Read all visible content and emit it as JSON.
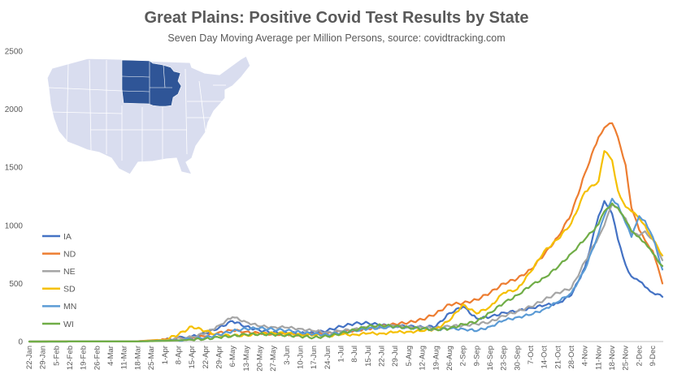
{
  "chart_data": {
    "type": "line",
    "title": "Great Plains: Positive Covid Test Results by State",
    "subtitle": "Seven Day Moving  Average per Million Persons, source: covidtracking.com",
    "xlabel": "",
    "ylabel": "",
    "ylim": [
      0,
      2500
    ],
    "yticks": [
      0,
      500,
      1000,
      1500,
      2000,
      2500
    ],
    "grid": false,
    "legend_position": "left",
    "x_tick_labels": [
      "22-Jan",
      "29-Jan",
      "5-Feb",
      "12-Feb",
      "19-Feb",
      "26-Feb",
      "4-Mar",
      "11-Mar",
      "18-Mar",
      "25-Mar",
      "1-Apr",
      "8-Apr",
      "15-Apr",
      "22-Apr",
      "29-Apr",
      "6-May",
      "13-May",
      "20-May",
      "27-May",
      "3-Jun",
      "10-Jun",
      "17-Jun",
      "24-Jun",
      "1-Jul",
      "8-Jul",
      "15-Jul",
      "22-Jul",
      "29-Jul",
      "5-Aug",
      "12-Aug",
      "19-Aug",
      "26-Aug",
      "2-Sep",
      "9-Sep",
      "16-Sep",
      "23-Sep",
      "30-Sep",
      "7-Oct",
      "14-Oct",
      "21-Oct",
      "28-Oct",
      "4-Nov",
      "11-Nov",
      "18-Nov",
      "25-Nov",
      "2-Dec",
      "9-Dec"
    ],
    "x_end": "14-Dec",
    "series": [
      {
        "name": "IA",
        "color": "#4472c4",
        "points": [
          [
            "22-Jan",
            0
          ],
          [
            "18-Mar",
            2
          ],
          [
            "1-Apr",
            15
          ],
          [
            "15-Apr",
            45
          ],
          [
            "22-Apr",
            70
          ],
          [
            "29-Apr",
            120
          ],
          [
            "6-May",
            175
          ],
          [
            "13-May",
            130
          ],
          [
            "20-May",
            95
          ],
          [
            "27-May",
            80
          ],
          [
            "3-Jun",
            75
          ],
          [
            "10-Jun",
            70
          ],
          [
            "17-Jun",
            72
          ],
          [
            "24-Jun",
            95
          ],
          [
            "1-Jul",
            130
          ],
          [
            "8-Jul",
            155
          ],
          [
            "15-Jul",
            160
          ],
          [
            "22-Jul",
            140
          ],
          [
            "29-Jul",
            135
          ],
          [
            "5-Aug",
            130
          ],
          [
            "12-Aug",
            125
          ],
          [
            "19-Aug",
            130
          ],
          [
            "26-Aug",
            245
          ],
          [
            "2-Sep",
            300
          ],
          [
            "9-Sep",
            200
          ],
          [
            "16-Sep",
            210
          ],
          [
            "23-Sep",
            250
          ],
          [
            "30-Sep",
            260
          ],
          [
            "7-Oct",
            290
          ],
          [
            "14-Oct",
            310
          ],
          [
            "21-Oct",
            330
          ],
          [
            "28-Oct",
            400
          ],
          [
            "4-Nov",
            640
          ],
          [
            "11-Nov",
            1080
          ],
          [
            "14-Nov",
            1210
          ],
          [
            "18-Nov",
            1100
          ],
          [
            "21-Nov",
            880
          ],
          [
            "25-Nov",
            660
          ],
          [
            "28-Nov",
            560
          ],
          [
            "2-Dec",
            520
          ],
          [
            "5-Dec",
            470
          ],
          [
            "9-Dec",
            420
          ],
          [
            "14-Dec",
            385
          ]
        ]
      },
      {
        "name": "ND",
        "color": "#ed7d31",
        "points": [
          [
            "22-Jan",
            0
          ],
          [
            "18-Mar",
            3
          ],
          [
            "1-Apr",
            18
          ],
          [
            "15-Apr",
            30
          ],
          [
            "22-Apr",
            45
          ],
          [
            "29-Apr",
            80
          ],
          [
            "6-May",
            95
          ],
          [
            "13-May",
            85
          ],
          [
            "20-May",
            70
          ],
          [
            "27-May",
            65
          ],
          [
            "3-Jun",
            60
          ],
          [
            "10-Jun",
            58
          ],
          [
            "17-Jun",
            60
          ],
          [
            "24-Jun",
            70
          ],
          [
            "1-Jul",
            85
          ],
          [
            "8-Jul",
            95
          ],
          [
            "15-Jul",
            110
          ],
          [
            "22-Jul",
            130
          ],
          [
            "29-Jul",
            150
          ],
          [
            "5-Aug",
            165
          ],
          [
            "12-Aug",
            190
          ],
          [
            "19-Aug",
            240
          ],
          [
            "26-Aug",
            320
          ],
          [
            "2-Sep",
            330
          ],
          [
            "9-Sep",
            360
          ],
          [
            "16-Sep",
            420
          ],
          [
            "23-Sep",
            500
          ],
          [
            "30-Sep",
            540
          ],
          [
            "7-Oct",
            620
          ],
          [
            "14-Oct",
            750
          ],
          [
            "21-Oct",
            900
          ],
          [
            "28-Oct",
            1100
          ],
          [
            "4-Nov",
            1450
          ],
          [
            "11-Nov",
            1760
          ],
          [
            "14-Nov",
            1840
          ],
          [
            "18-Nov",
            1880
          ],
          [
            "21-Nov",
            1760
          ],
          [
            "25-Nov",
            1520
          ],
          [
            "28-Nov",
            1150
          ],
          [
            "2-Dec",
            960
          ],
          [
            "5-Dec",
            870
          ],
          [
            "9-Dec",
            780
          ],
          [
            "14-Dec",
            500
          ]
        ]
      },
      {
        "name": "NE",
        "color": "#a5a5a5",
        "points": [
          [
            "22-Jan",
            0
          ],
          [
            "18-Mar",
            1
          ],
          [
            "1-Apr",
            12
          ],
          [
            "15-Apr",
            40
          ],
          [
            "22-Apr",
            70
          ],
          [
            "29-Apr",
            140
          ],
          [
            "6-May",
            210
          ],
          [
            "13-May",
            170
          ],
          [
            "20-May",
            130
          ],
          [
            "27-May",
            125
          ],
          [
            "3-Jun",
            120
          ],
          [
            "10-Jun",
            110
          ],
          [
            "17-Jun",
            90
          ],
          [
            "24-Jun",
            80
          ],
          [
            "1-Jul",
            90
          ],
          [
            "8-Jul",
            110
          ],
          [
            "15-Jul",
            120
          ],
          [
            "22-Jul",
            130
          ],
          [
            "29-Jul",
            135
          ],
          [
            "5-Aug",
            125
          ],
          [
            "12-Aug",
            120
          ],
          [
            "19-Aug",
            120
          ],
          [
            "26-Aug",
            130
          ],
          [
            "2-Sep",
            140
          ],
          [
            "9-Sep",
            150
          ],
          [
            "16-Sep",
            170
          ],
          [
            "23-Sep",
            220
          ],
          [
            "30-Sep",
            260
          ],
          [
            "7-Oct",
            300
          ],
          [
            "14-Oct",
            360
          ],
          [
            "21-Oct",
            420
          ],
          [
            "28-Oct",
            460
          ],
          [
            "4-Nov",
            690
          ],
          [
            "11-Nov",
            900
          ],
          [
            "14-Nov",
            1000
          ],
          [
            "18-Nov",
            1180
          ],
          [
            "21-Nov",
            1150
          ],
          [
            "25-Nov",
            1060
          ],
          [
            "28-Nov",
            930
          ],
          [
            "2-Dec",
            910
          ],
          [
            "5-Dec",
            950
          ],
          [
            "9-Dec",
            880
          ],
          [
            "14-Dec",
            700
          ]
        ]
      },
      {
        "name": "SD",
        "color": "#f5c000",
        "points": [
          [
            "22-Jan",
            0
          ],
          [
            "18-Mar",
            2
          ],
          [
            "1-Apr",
            15
          ],
          [
            "8-Apr",
            60
          ],
          [
            "15-Apr",
            130
          ],
          [
            "22-Apr",
            90
          ],
          [
            "29-Apr",
            55
          ],
          [
            "6-May",
            50
          ],
          [
            "13-May",
            55
          ],
          [
            "20-May",
            65
          ],
          [
            "27-May",
            75
          ],
          [
            "3-Jun",
            70
          ],
          [
            "10-Jun",
            60
          ],
          [
            "17-Jun",
            55
          ],
          [
            "24-Jun",
            50
          ],
          [
            "1-Jul",
            60
          ],
          [
            "8-Jul",
            60
          ],
          [
            "15-Jul",
            70
          ],
          [
            "22-Jul",
            70
          ],
          [
            "29-Jul",
            80
          ],
          [
            "5-Aug",
            85
          ],
          [
            "12-Aug",
            90
          ],
          [
            "19-Aug",
            110
          ],
          [
            "26-Aug",
            180
          ],
          [
            "2-Sep",
            320
          ],
          [
            "9-Sep",
            240
          ],
          [
            "16-Sep",
            300
          ],
          [
            "23-Sep",
            420
          ],
          [
            "30-Sep",
            450
          ],
          [
            "7-Oct",
            600
          ],
          [
            "14-Oct",
            780
          ],
          [
            "21-Oct",
            880
          ],
          [
            "28-Oct",
            1020
          ],
          [
            "4-Nov",
            1290
          ],
          [
            "11-Nov",
            1380
          ],
          [
            "14-Nov",
            1640
          ],
          [
            "18-Nov",
            1560
          ],
          [
            "21-Nov",
            1300
          ],
          [
            "25-Nov",
            1160
          ],
          [
            "28-Nov",
            1120
          ],
          [
            "2-Dec",
            1060
          ],
          [
            "5-Dec",
            1000
          ],
          [
            "9-Dec",
            880
          ],
          [
            "14-Dec",
            740
          ]
        ]
      },
      {
        "name": "MN",
        "color": "#5b9bd5",
        "points": [
          [
            "22-Jan",
            0
          ],
          [
            "18-Mar",
            1
          ],
          [
            "1-Apr",
            8
          ],
          [
            "15-Apr",
            20
          ],
          [
            "22-Apr",
            35
          ],
          [
            "29-Apr",
            60
          ],
          [
            "6-May",
            90
          ],
          [
            "13-May",
            110
          ],
          [
            "20-May",
            115
          ],
          [
            "27-May",
            105
          ],
          [
            "3-Jun",
            95
          ],
          [
            "10-Jun",
            80
          ],
          [
            "17-Jun",
            65
          ],
          [
            "24-Jun",
            60
          ],
          [
            "1-Jul",
            75
          ],
          [
            "8-Jul",
            95
          ],
          [
            "15-Jul",
            110
          ],
          [
            "22-Jul",
            120
          ],
          [
            "29-Jul",
            125
          ],
          [
            "5-Aug",
            120
          ],
          [
            "12-Aug",
            110
          ],
          [
            "19-Aug",
            105
          ],
          [
            "26-Aug",
            110
          ],
          [
            "2-Sep",
            110
          ],
          [
            "9-Sep",
            90
          ],
          [
            "16-Sep",
            130
          ],
          [
            "23-Sep",
            180
          ],
          [
            "30-Sep",
            210
          ],
          [
            "7-Oct",
            230
          ],
          [
            "14-Oct",
            280
          ],
          [
            "21-Oct",
            340
          ],
          [
            "28-Oct",
            420
          ],
          [
            "4-Nov",
            620
          ],
          [
            "11-Nov",
            930
          ],
          [
            "14-Nov",
            1080
          ],
          [
            "18-Nov",
            1230
          ],
          [
            "21-Nov",
            1180
          ],
          [
            "25-Nov",
            1020
          ],
          [
            "28-Nov",
            900
          ],
          [
            "2-Dec",
            1080
          ],
          [
            "5-Dec",
            1040
          ],
          [
            "9-Dec",
            900
          ],
          [
            "14-Dec",
            620
          ]
        ]
      },
      {
        "name": "WI",
        "color": "#70ad47",
        "points": [
          [
            "22-Jan",
            0
          ],
          [
            "18-Mar",
            1
          ],
          [
            "1-Apr",
            6
          ],
          [
            "15-Apr",
            15
          ],
          [
            "22-Apr",
            25
          ],
          [
            "29-Apr",
            35
          ],
          [
            "6-May",
            50
          ],
          [
            "13-May",
            60
          ],
          [
            "20-May",
            65
          ],
          [
            "27-May",
            60
          ],
          [
            "3-Jun",
            55
          ],
          [
            "10-Jun",
            45
          ],
          [
            "17-Jun",
            35
          ],
          [
            "24-Jun",
            45
          ],
          [
            "1-Jul",
            70
          ],
          [
            "8-Jul",
            100
          ],
          [
            "15-Jul",
            130
          ],
          [
            "22-Jul",
            140
          ],
          [
            "29-Jul",
            130
          ],
          [
            "5-Aug",
            120
          ],
          [
            "12-Aug",
            110
          ],
          [
            "19-Aug",
            105
          ],
          [
            "26-Aug",
            110
          ],
          [
            "2-Sep",
            150
          ],
          [
            "9-Sep",
            170
          ],
          [
            "16-Sep",
            250
          ],
          [
            "23-Sep",
            330
          ],
          [
            "30-Sep",
            400
          ],
          [
            "7-Oct",
            480
          ],
          [
            "14-Oct",
            550
          ],
          [
            "21-Oct",
            640
          ],
          [
            "28-Oct",
            760
          ],
          [
            "4-Nov",
            880
          ],
          [
            "11-Nov",
            1010
          ],
          [
            "14-Nov",
            1120
          ],
          [
            "18-Nov",
            1190
          ],
          [
            "21-Nov",
            1150
          ],
          [
            "25-Nov",
            1040
          ],
          [
            "28-Nov",
            950
          ],
          [
            "2-Dec",
            900
          ],
          [
            "5-Dec",
            850
          ],
          [
            "9-Dec",
            760
          ],
          [
            "14-Dec",
            650
          ]
        ]
      }
    ],
    "inset_map": {
      "type": "choropleth",
      "region": "United States",
      "highlighted_states": [
        "ND",
        "SD",
        "NE",
        "MN",
        "IA",
        "WI"
      ],
      "highlight_color": "#2f5597",
      "base_color": "#d9ddef",
      "border_color": "#ffffff"
    }
  }
}
